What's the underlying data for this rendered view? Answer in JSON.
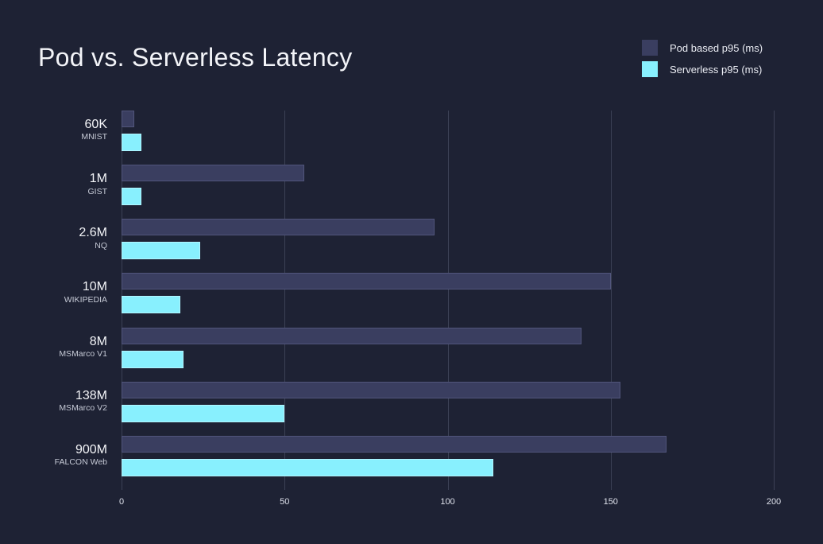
{
  "title": "Pod vs. Serverless Latency",
  "colors": {
    "background": "#1e2234",
    "pod_series": "#3a3e60",
    "pod_series_border": "#51557b",
    "serverless_series": "#88f0fe",
    "serverless_series_border": "#b2f6ff",
    "gridline": "#3c4156",
    "title_text": "#f3f4f8",
    "tick_text": "#dde0ea",
    "category_main_text": "#f4f5f8",
    "category_sub_text": "#c6cad6"
  },
  "chart_data": {
    "type": "bar",
    "orientation": "horizontal",
    "title": "Pod vs. Serverless Latency",
    "xlabel": "",
    "ylabel": "",
    "xlim": [
      0,
      200
    ],
    "x_ticks": [
      0,
      50,
      100,
      150,
      200
    ],
    "grid": "vertical",
    "legend_position": "top-right",
    "categories": [
      {
        "size": "60K",
        "name": "MNIST"
      },
      {
        "size": "1M",
        "name": "GIST"
      },
      {
        "size": "2.6M",
        "name": "NQ"
      },
      {
        "size": "10M",
        "name": "WIKIPEDIA"
      },
      {
        "size": "8M",
        "name": "MSMarco V1"
      },
      {
        "size": "138M",
        "name": "MSMarco V2"
      },
      {
        "size": "900M",
        "name": "FALCON Web"
      }
    ],
    "series": [
      {
        "name": "Pod based p95 (ms)",
        "color": "#3a3e60",
        "border_color": "#51557b",
        "values": [
          4,
          56,
          96,
          150,
          141,
          153,
          167
        ]
      },
      {
        "name": "Serverless p95 (ms)",
        "color": "#88f0fe",
        "border_color": "#b2f6ff",
        "values": [
          6,
          6,
          24,
          18,
          19,
          50,
          114
        ]
      }
    ]
  }
}
